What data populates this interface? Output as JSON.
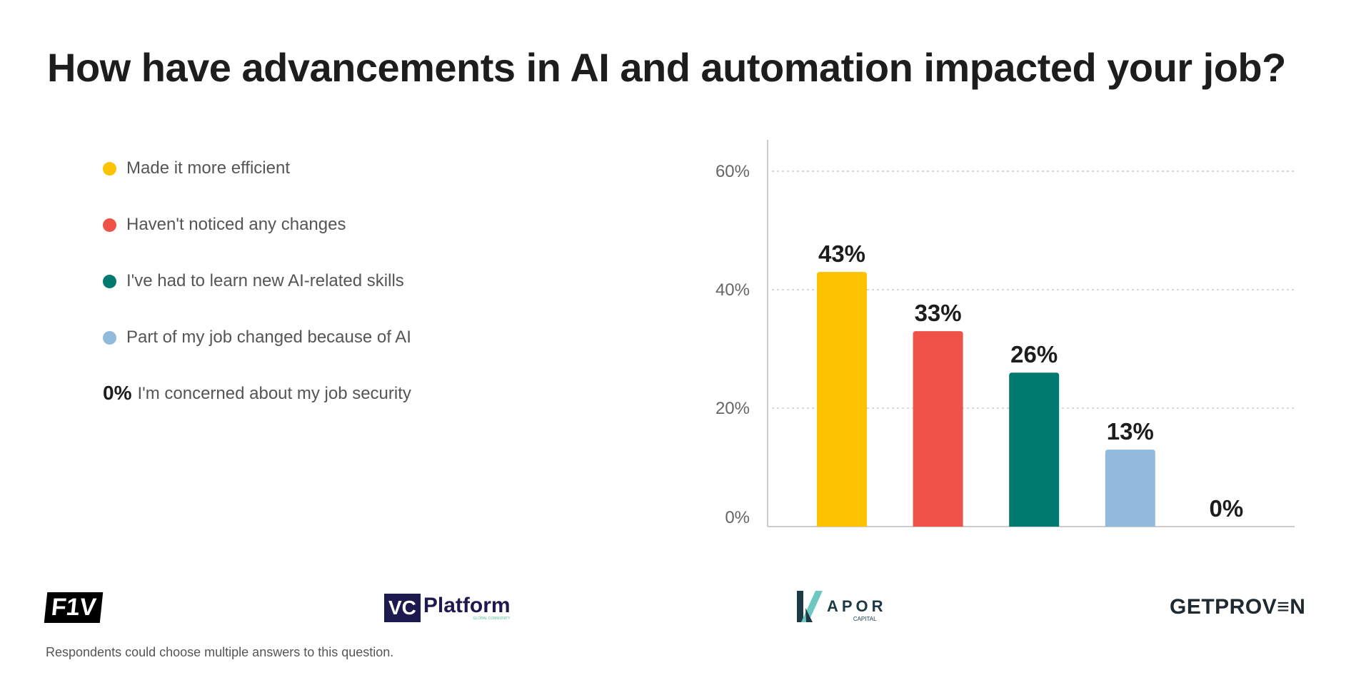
{
  "title": "How have advancements in AI and automation impacted your job?",
  "note": "Respondents could choose multiple answers to this question.",
  "legend": [
    {
      "label": "Made it more efficient",
      "color": "#FDC300"
    },
    {
      "label": "Haven't noticed any changes",
      "color": "#EF5246"
    },
    {
      "label": "I've had to learn new AI-related skills",
      "color": "#007A6E"
    },
    {
      "label": "Part of my job changed because of AI",
      "color": "#91BADD"
    },
    {
      "label": "I'm concerned about my job security",
      "prefix": "0%"
    }
  ],
  "logos": {
    "f1v": "F1V",
    "vc": "VC",
    "platform": "Platform",
    "platform_sub": "GLOBAL COMMUNITY",
    "kapor": "APOR",
    "kapor_sub": "CAPITAL",
    "getproven": "GETPROV≡N"
  },
  "chart_data": {
    "type": "bar",
    "title": "How have advancements in AI and automation impacted your job?",
    "categories": [
      "Made it more efficient",
      "Haven't noticed any changes",
      "I've had to learn new AI-related skills",
      "Part of my job changed because of AI",
      "I'm concerned about my job security"
    ],
    "values": [
      43,
      33,
      26,
      13,
      0
    ],
    "data_labels": [
      "43%",
      "33%",
      "26%",
      "13%",
      "0%"
    ],
    "colors": [
      "#FDC300",
      "#EF5246",
      "#007A6E",
      "#91BADD",
      "#cccccc"
    ],
    "ylim": [
      0,
      60
    ],
    "yticks": [
      0,
      20,
      40,
      60
    ],
    "ytick_labels": [
      "0%",
      "20%",
      "40%",
      "60%"
    ],
    "grid": true,
    "legend_placement": "left"
  }
}
